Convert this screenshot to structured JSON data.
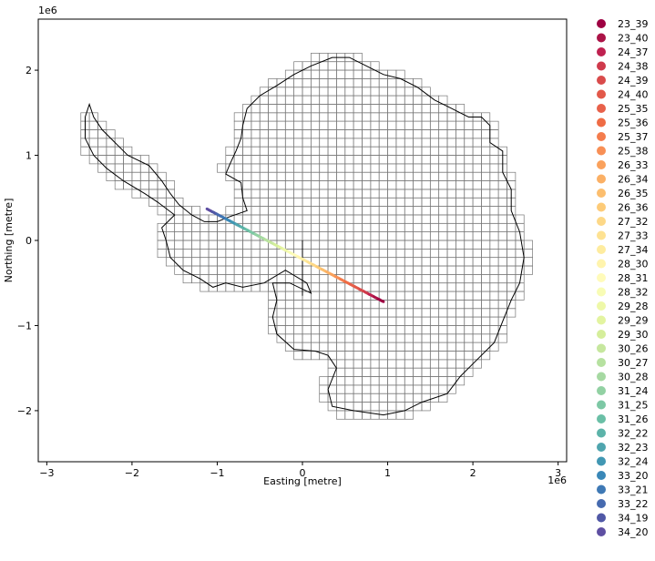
{
  "chart_data": {
    "type": "scatter",
    "title": "",
    "xlabel": "Easting [metre]",
    "ylabel": "Northing [metre]",
    "x_offset_label": "1e6",
    "y_offset_label": "1e6",
    "xlim": [
      -3.1,
      3.1
    ],
    "ylim": [
      -2.6,
      2.6
    ],
    "x_ticks": [
      -3,
      -2,
      -1,
      0,
      1,
      2,
      3
    ],
    "x_tick_labels": [
      "−3",
      "−2",
      "−1",
      "0",
      "1",
      "2",
      "3"
    ],
    "y_ticks": [
      -2,
      -1,
      0,
      1,
      2
    ],
    "y_tick_labels": [
      "−2",
      "−1",
      "0",
      "1",
      "2"
    ],
    "grid": false,
    "legend_position": "outside-right",
    "track": {
      "start": [
        -1.12,
        0.37
      ],
      "end": [
        0.95,
        -0.72
      ]
    },
    "tile_size": 0.1,
    "legend": [
      {
        "label": "23_39",
        "color": "#9e0142"
      },
      {
        "label": "23_40",
        "color": "#ab1347"
      },
      {
        "label": "24_37",
        "color": "#bf2150"
      },
      {
        "label": "24_38",
        "color": "#cf3a4c"
      },
      {
        "label": "24_39",
        "color": "#d94b4b"
      },
      {
        "label": "24_40",
        "color": "#e25849"
      },
      {
        "label": "25_35",
        "color": "#e8614a"
      },
      {
        "label": "25_36",
        "color": "#ef6c45"
      },
      {
        "label": "25_37",
        "color": "#f47c4d"
      },
      {
        "label": "25_38",
        "color": "#f88f55"
      },
      {
        "label": "26_33",
        "color": "#faa15c"
      },
      {
        "label": "26_34",
        "color": "#fbb065"
      },
      {
        "label": "26_35",
        "color": "#fcbe6e"
      },
      {
        "label": "26_36",
        "color": "#fdcb78"
      },
      {
        "label": "27_32",
        "color": "#fdd887"
      },
      {
        "label": "27_33",
        "color": "#fee292"
      },
      {
        "label": "27_34",
        "color": "#feec9f"
      },
      {
        "label": "28_30",
        "color": "#fff4ad"
      },
      {
        "label": "28_31",
        "color": "#fffbba"
      },
      {
        "label": "28_32",
        "color": "#f8fcb5"
      },
      {
        "label": "29_28",
        "color": "#eef8a8"
      },
      {
        "label": "29_29",
        "color": "#e3f4a0"
      },
      {
        "label": "29_30",
        "color": "#d5ee9b"
      },
      {
        "label": "30_26",
        "color": "#c6e79e"
      },
      {
        "label": "30_27",
        "color": "#b6e1a0"
      },
      {
        "label": "30_28",
        "color": "#a6d9a2"
      },
      {
        "label": "31_24",
        "color": "#92d1a3"
      },
      {
        "label": "31_25",
        "color": "#7dc8a5"
      },
      {
        "label": "31_26",
        "color": "#6abfa6"
      },
      {
        "label": "32_22",
        "color": "#5cb3a9"
      },
      {
        "label": "32_23",
        "color": "#4fa5ae"
      },
      {
        "label": "32_24",
        "color": "#4197b3"
      },
      {
        "label": "33_20",
        "color": "#3a88b8"
      },
      {
        "label": "33_21",
        "color": "#3f79b5"
      },
      {
        "label": "33_22",
        "color": "#466aaf"
      },
      {
        "label": "34_19",
        "color": "#5058a6"
      },
      {
        "label": "34_20",
        "color": "#5e4fa2"
      }
    ]
  }
}
